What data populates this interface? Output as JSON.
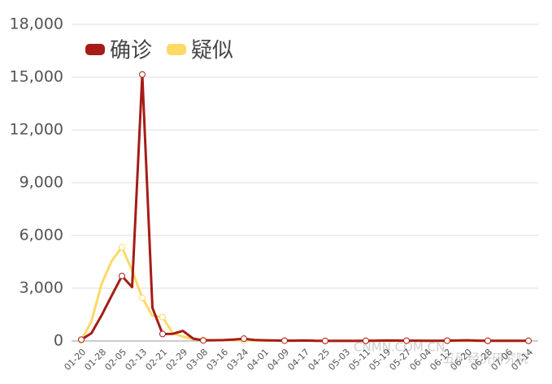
{
  "chart_data": {
    "type": "line",
    "categories": [
      "01-20",
      null,
      "01-28",
      null,
      "02-05",
      null,
      "02-13",
      null,
      "02-21",
      null,
      "02-29",
      null,
      "03-08",
      null,
      "03-16",
      null,
      "03-24",
      null,
      "04-01",
      null,
      "04-09",
      null,
      "04-17",
      null,
      "04-25",
      null,
      "05-03",
      null,
      "05-11",
      null,
      "05-19",
      null,
      "05-27",
      null,
      "06-04",
      null,
      "06-12",
      null,
      "06-20",
      null,
      "06-28",
      null,
      "07-06",
      null,
      "07-14"
    ],
    "series": [
      {
        "name": "确诊",
        "color": "#a61c16",
        "values": [
          77,
          444,
          1459,
          2590,
          3694,
          3062,
          15152,
          1886,
          397,
          406,
          573,
          139,
          30,
          40,
          50,
          80,
          130,
          60,
          40,
          30,
          20,
          20,
          30,
          10,
          5,
          5,
          5,
          5,
          10,
          15,
          30,
          25,
          20,
          15,
          10,
          10,
          20,
          30,
          40,
          20,
          10,
          10,
          10,
          10,
          10
        ]
      },
      {
        "name": "疑似",
        "color": "#ffd966",
        "values": [
          27,
          1118,
          3248,
          4562,
          5328,
          4008,
          2450,
          1432,
          1361,
          439,
          248,
          100,
          60,
          50,
          40,
          40,
          30,
          30,
          20,
          20,
          20,
          15,
          10,
          10,
          5,
          5,
          5,
          5,
          5,
          5,
          5,
          5,
          5,
          5,
          5,
          5,
          5,
          5,
          5,
          5,
          5,
          5,
          5,
          5,
          5
        ]
      }
    ],
    "ylim": [
      0,
      18000
    ],
    "yticks": [
      0,
      {
        "value": 3000,
        "label": "3,000"
      },
      {
        "value": 6000,
        "label": "6,000"
      },
      {
        "value": 9000,
        "label": "9,000"
      },
      {
        "value": 12000,
        "label": "12,000"
      },
      {
        "value": 15000,
        "label": "15,000"
      },
      {
        "value": 18000,
        "label": "18,000"
      }
    ],
    "grid": true,
    "legend": "top-left",
    "annotations": [
      "CNMN.COM.CN",
      "五矿经济研究院"
    ]
  }
}
